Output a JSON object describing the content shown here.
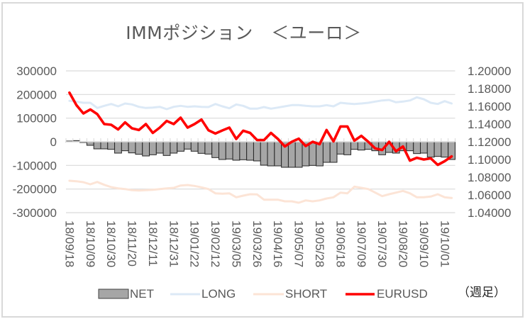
{
  "title": "IMMポジション　＜ユーロ＞",
  "legend": {
    "items": [
      {
        "label": "NET",
        "type": "bar",
        "color": "#a6a6a6",
        "border": "#404040"
      },
      {
        "label": "LONG",
        "type": "line",
        "color": "#dce9f6"
      },
      {
        "label": "SHORT",
        "type": "line",
        "color": "#fce4d6"
      },
      {
        "label": "EURUSD",
        "type": "line",
        "color": "#ff0000"
      }
    ],
    "note": "（週足）"
  },
  "colors": {
    "text": "#595959",
    "grid": "#d9d9d9",
    "bar_fill": "#a6a6a6",
    "bar_border": "#262626",
    "frame": "#d9d9d9"
  },
  "chart_data": {
    "type": "bar+line",
    "title": "IMMポジション　＜ユーロ＞",
    "xlabel": "",
    "ylabel": "",
    "n_points": 56,
    "x_tick_index": [
      0,
      3,
      6,
      9,
      12,
      15,
      18,
      21,
      24,
      27,
      30,
      33,
      36,
      39,
      42,
      45,
      48,
      51,
      54
    ],
    "x_tick_labels": [
      "18/09/18",
      "18/10/09",
      "18/10/30",
      "18/11/20",
      "18/12/11",
      "18/12/31",
      "19/01/22",
      "19/02/12",
      "19/03/05",
      "19/03/26",
      "19/04/16",
      "19/05/07",
      "19/05/28",
      "19/06/18",
      "19/07/09",
      "19/07/30",
      "19/08/20",
      "19/09/10",
      "19/10/01"
    ],
    "y_left": {
      "min": -300000,
      "max": 300000,
      "step": 100000,
      "tick_labels": [
        "300000",
        "200000",
        "100000",
        "0",
        "-100000",
        "-200000",
        "-300000"
      ]
    },
    "y_right": {
      "min": 1.04,
      "max": 1.2,
      "step": 0.02,
      "tick_labels": [
        "1.20000",
        "1.18000",
        "1.16000",
        "1.14000",
        "1.12000",
        "1.10000",
        "1.08000",
        "1.06000",
        "1.04000"
      ]
    },
    "grid": true,
    "legend_position": "bottom",
    "series": [
      {
        "name": "NET",
        "type": "bar",
        "axis": "left",
        "color": "#a6a6a6",
        "values": [
          3000,
          5000,
          -3000,
          -15000,
          -30000,
          -30000,
          -32000,
          -48000,
          -38000,
          -47000,
          -53000,
          -60000,
          -55000,
          -48000,
          -58000,
          -48000,
          -40000,
          -31000,
          -40000,
          -49000,
          -52000,
          -67000,
          -75000,
          -73000,
          -78000,
          -76000,
          -78000,
          -81000,
          -99000,
          -102000,
          -102000,
          -108000,
          -108000,
          -108000,
          -102000,
          -100000,
          -102000,
          -87000,
          -87000,
          -52000,
          -55000,
          -32000,
          -35000,
          -32000,
          -38000,
          -55000,
          -45000,
          -48000,
          -38000,
          -38000,
          -50000,
          -48000,
          -65000,
          -62000,
          -65000,
          -75000
        ]
      },
      {
        "name": "LONG",
        "type": "line",
        "axis": "left",
        "color": "#dce9f6",
        "values": [
          173000,
          170000,
          165000,
          165000,
          143000,
          152000,
          160000,
          150000,
          162000,
          158000,
          148000,
          143000,
          145000,
          148000,
          138000,
          148000,
          152000,
          148000,
          150000,
          148000,
          147000,
          160000,
          150000,
          142000,
          158000,
          152000,
          140000,
          140000,
          147000,
          140000,
          145000,
          150000,
          155000,
          155000,
          152000,
          150000,
          150000,
          155000,
          150000,
          165000,
          162000,
          160000,
          162000,
          165000,
          170000,
          175000,
          177000,
          167000,
          170000,
          175000,
          188000,
          180000,
          165000,
          160000,
          172000,
          162000
        ]
      },
      {
        "name": "SHORT",
        "type": "line",
        "axis": "left",
        "color": "#fce4d6",
        "values": [
          -165000,
          -167000,
          -171000,
          -180000,
          -170000,
          -182000,
          -192000,
          -197000,
          -200000,
          -205000,
          -206000,
          -205000,
          -203000,
          -200000,
          -197000,
          -195000,
          -185000,
          -183000,
          -187000,
          -193000,
          -200000,
          -218000,
          -220000,
          -218000,
          -235000,
          -228000,
          -222000,
          -223000,
          -245000,
          -245000,
          -245000,
          -252000,
          -252000,
          -258000,
          -248000,
          -252000,
          -248000,
          -240000,
          -235000,
          -215000,
          -218000,
          -190000,
          -195000,
          -200000,
          -215000,
          -230000,
          -222000,
          -215000,
          -208000,
          -218000,
          -235000,
          -235000,
          -232000,
          -222000,
          -235000,
          -238000
        ]
      },
      {
        "name": "EURUSD",
        "type": "line",
        "axis": "right",
        "color": "#ff0000",
        "values": [
          1.1754,
          1.1614,
          1.152,
          1.1565,
          1.1512,
          1.14,
          1.1392,
          1.1339,
          1.1419,
          1.1352,
          1.1333,
          1.14,
          1.13,
          1.136,
          1.1435,
          1.14,
          1.1472,
          1.136,
          1.14,
          1.145,
          1.133,
          1.1293,
          1.1328,
          1.136,
          1.1232,
          1.1325,
          1.13,
          1.1219,
          1.1219,
          1.13,
          1.1232,
          1.1147,
          1.12,
          1.1235,
          1.1152,
          1.12,
          1.1173,
          1.1333,
          1.1205,
          1.1373,
          1.1373,
          1.1213,
          1.1267,
          1.12,
          1.1125,
          1.1107,
          1.12,
          1.1093,
          1.1147,
          1.0987,
          1.1019,
          1.1,
          1.1013,
          1.0939,
          1.0981,
          1.1035
        ]
      }
    ]
  }
}
